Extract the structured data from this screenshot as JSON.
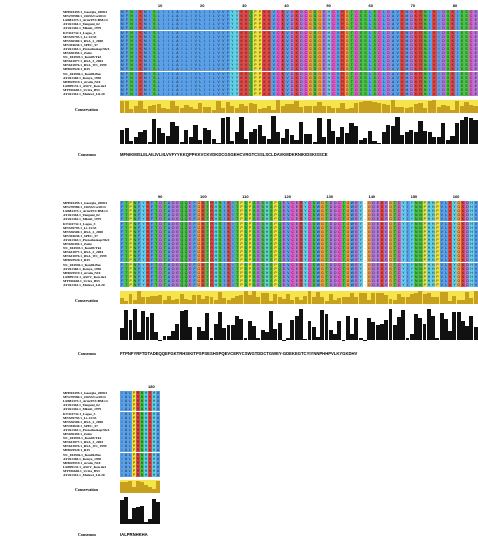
{
  "sequence_names": [
    "MH910495.1_Georgia_2008/1",
    "MN270980.1_22653/Ca/2014",
    "LR881473.1_Arm/07/CBM/c4",
    "AY261364.1_Tengani_62",
    "AY261362.1_Mkuzi_1979",
    "KT441732.1_Lagos_3",
    "MN539793.1_Lt-13/33",
    "MN536500.1_RSA_2_2008",
    "MN394630.1_SPEC_57",
    "AY261363.1_Pretoriuskop/96/4",
    "MN630494.1_Zaire",
    "NC_044945.1_Ken05/Tk1",
    "MN641877.1_RSA_2_2004",
    "MN641876.1_RSA_W1_1999",
    "MH025920.1_R35",
    "NC_044946.1_Ken06.Bus",
    "AY261360.1_Kenya_1950",
    "MH025919.1_strain_N10",
    "LR899131.1_ASFV_Ken.tie1",
    "MT956648.1_Uvira_B53",
    "AY261361.1_Malawi_Lil-20"
  ],
  "labels": {
    "conservation": "Conservation",
    "consensus": "Consensus"
  },
  "block1": {
    "ticks": [
      "10",
      "20",
      "30",
      "40",
      "50",
      "60",
      "70",
      "80"
    ],
    "consensus": "MFNIKMISLIILAILIVLIILVVFYYKKQPPKKVCKVDKDCGSGEHCVRGTCSSLSCLDAVKMDKRNIKIDSKISSCE"
  },
  "block2": {
    "ticks": [
      "90",
      "100",
      "110",
      "120",
      "130",
      "140",
      "150",
      "160"
    ],
    "consensus": "FTPNFYRFTDTADEQQEFGKTRHSIKITPSPSESHSPQEVCERYCSWGTDDCTGWEY-GDEKEGTCYIYNNPHHPVLKYGKDHV"
  },
  "block3": {
    "ticks": [
      "180"
    ],
    "consensus": "IALPRNHKHA"
  },
  "colors": {
    "blue": "#5aa0e8",
    "teal": "#3fb8a8",
    "green": "#4ac24a",
    "purple": "#b07ad8",
    "magenta": "#e05ac8",
    "orange": "#f0a040",
    "red": "#e04848",
    "yellow": "#f0e040",
    "cyan": "#60d0e8",
    "conservation_bar": "#f5e44a",
    "conservation_dark": "#c8a020"
  }
}
